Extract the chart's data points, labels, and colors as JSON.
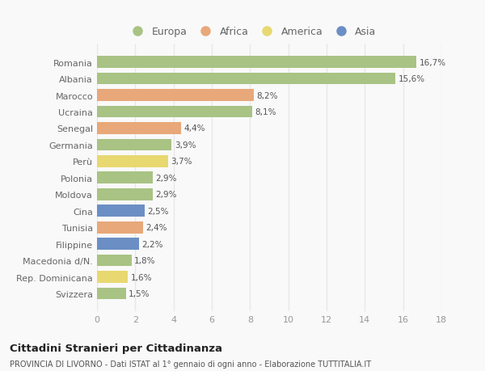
{
  "categories": [
    "Romania",
    "Albania",
    "Marocco",
    "Ucraina",
    "Senegal",
    "Germania",
    "Perù",
    "Polonia",
    "Moldova",
    "Cina",
    "Tunisia",
    "Filippine",
    "Macedonia d/N.",
    "Rep. Dominicana",
    "Svizzera"
  ],
  "values": [
    16.7,
    15.6,
    8.2,
    8.1,
    4.4,
    3.9,
    3.7,
    2.9,
    2.9,
    2.5,
    2.4,
    2.2,
    1.8,
    1.6,
    1.5
  ],
  "labels": [
    "16,7%",
    "15,6%",
    "8,2%",
    "8,1%",
    "4,4%",
    "3,9%",
    "3,7%",
    "2,9%",
    "2,9%",
    "2,5%",
    "2,4%",
    "2,2%",
    "1,8%",
    "1,6%",
    "1,5%"
  ],
  "continents": [
    "Europa",
    "Europa",
    "Africa",
    "Europa",
    "Africa",
    "Europa",
    "America",
    "Europa",
    "Europa",
    "Asia",
    "Africa",
    "Asia",
    "Europa",
    "America",
    "Europa"
  ],
  "colors": {
    "Europa": "#a8c384",
    "Africa": "#e8a87a",
    "America": "#e8d870",
    "Asia": "#6b8fc4"
  },
  "legend_order": [
    "Europa",
    "Africa",
    "America",
    "Asia"
  ],
  "title": "Cittadini Stranieri per Cittadinanza",
  "subtitle": "PROVINCIA DI LIVORNO - Dati ISTAT al 1° gennaio di ogni anno - Elaborazione TUTTITALIA.IT",
  "xlim": [
    0,
    18
  ],
  "xticks": [
    0,
    2,
    4,
    6,
    8,
    10,
    12,
    14,
    16,
    18
  ],
  "background_color": "#f9f9f9",
  "grid_color": "#e8e8e8",
  "bar_height": 0.72
}
